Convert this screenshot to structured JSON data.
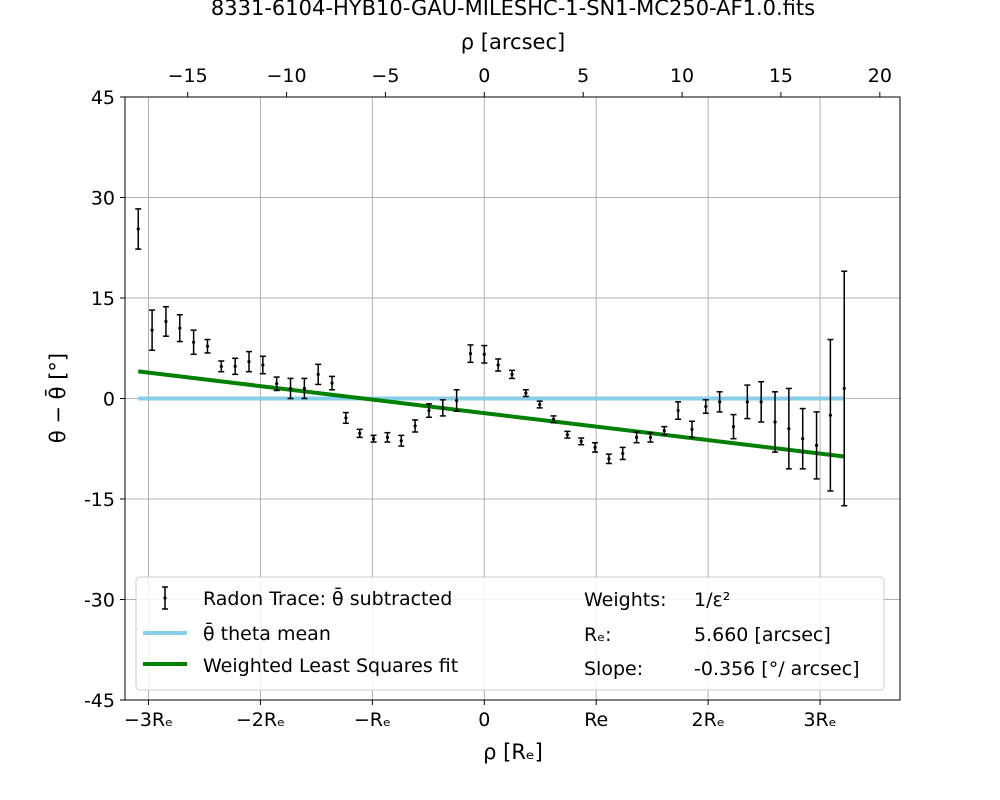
{
  "chart_data": {
    "type": "scatter",
    "title": "8331-6104-HYB10-GAU-MILESHC-1-SN1-MC250-AF1.0.fits",
    "top_axis": {
      "label": "ρ [arcsec]",
      "range": [
        -18.17,
        21.02
      ],
      "ticks": [
        -15,
        -10,
        -5,
        0,
        5,
        10,
        15,
        20
      ],
      "tick_labels": [
        "−15",
        "−10",
        "−5",
        "0",
        "5",
        "10",
        "15",
        "20"
      ]
    },
    "bottom_axis": {
      "label": "ρ [Rₑ]",
      "range": [
        -3.21,
        3.714
      ],
      "ticks": [
        -3,
        -2,
        -1,
        0,
        1,
        2,
        3
      ],
      "tick_labels": [
        "−3Rₑ",
        "−2Rₑ",
        "−Rₑ",
        "0",
        "Re",
        "2Rₑ",
        "3Rₑ"
      ]
    },
    "y_axis": {
      "label": "θ − θ̄ [°]",
      "range": [
        -45,
        45
      ],
      "ticks": [
        -45,
        -30,
        -15,
        0,
        15,
        30,
        45
      ],
      "tick_labels": [
        "-45",
        "-30",
        "-15",
        "0",
        "15",
        "30",
        "45"
      ]
    },
    "grid": true,
    "legend_position": "lower-center",
    "series": [
      {
        "name": "Radon Trace: θ̄ subtracted",
        "kind": "errorbar",
        "color": "#000000",
        "points": [
          {
            "x": -17.5,
            "y": 25.3,
            "err": 3.0
          },
          {
            "x": -16.8,
            "y": 10.2,
            "err": 3.0
          },
          {
            "x": -16.1,
            "y": 11.5,
            "err": 2.2
          },
          {
            "x": -15.4,
            "y": 10.5,
            "err": 2.0
          },
          {
            "x": -14.7,
            "y": 8.4,
            "err": 1.8
          },
          {
            "x": -14.0,
            "y": 7.8,
            "err": 1.0
          },
          {
            "x": -13.3,
            "y": 4.8,
            "err": 0.8
          },
          {
            "x": -12.6,
            "y": 4.8,
            "err": 1.2
          },
          {
            "x": -11.9,
            "y": 5.5,
            "err": 1.5
          },
          {
            "x": -11.2,
            "y": 5.0,
            "err": 1.3
          },
          {
            "x": -10.5,
            "y": 2.2,
            "err": 1.0
          },
          {
            "x": -9.8,
            "y": 1.5,
            "err": 1.5
          },
          {
            "x": -9.1,
            "y": 1.5,
            "err": 1.5
          },
          {
            "x": -8.4,
            "y": 3.6,
            "err": 1.5
          },
          {
            "x": -7.7,
            "y": 2.3,
            "err": 1.0
          },
          {
            "x": -7.0,
            "y": -2.9,
            "err": 0.8
          },
          {
            "x": -6.3,
            "y": -5.2,
            "err": 0.6
          },
          {
            "x": -5.6,
            "y": -6.0,
            "err": 0.5
          },
          {
            "x": -4.9,
            "y": -5.8,
            "err": 0.7
          },
          {
            "x": -4.2,
            "y": -6.3,
            "err": 0.8
          },
          {
            "x": -3.5,
            "y": -4.1,
            "err": 0.9
          },
          {
            "x": -2.8,
            "y": -1.8,
            "err": 1.0
          },
          {
            "x": -2.1,
            "y": -1.4,
            "err": 1.2
          },
          {
            "x": -1.4,
            "y": -0.3,
            "err": 1.6
          },
          {
            "x": -0.7,
            "y": 6.7,
            "err": 1.3
          },
          {
            "x": 0.0,
            "y": 6.6,
            "err": 1.3
          },
          {
            "x": 0.7,
            "y": 5.0,
            "err": 0.9
          },
          {
            "x": 1.4,
            "y": 3.6,
            "err": 0.6
          },
          {
            "x": 2.1,
            "y": 0.8,
            "err": 0.5
          },
          {
            "x": 2.8,
            "y": -0.9,
            "err": 0.5
          },
          {
            "x": 3.5,
            "y": -3.1,
            "err": 0.5
          },
          {
            "x": 4.2,
            "y": -5.4,
            "err": 0.5
          },
          {
            "x": 4.9,
            "y": -6.4,
            "err": 0.5
          },
          {
            "x": 5.6,
            "y": -7.3,
            "err": 0.7
          },
          {
            "x": 6.3,
            "y": -9.0,
            "err": 0.7
          },
          {
            "x": 7.0,
            "y": -8.2,
            "err": 0.9
          },
          {
            "x": 7.7,
            "y": -5.8,
            "err": 0.8
          },
          {
            "x": 8.4,
            "y": -5.8,
            "err": 0.7
          },
          {
            "x": 9.1,
            "y": -4.8,
            "err": 0.6
          },
          {
            "x": 9.8,
            "y": -1.8,
            "err": 1.3
          },
          {
            "x": 10.5,
            "y": -4.6,
            "err": 1.2
          },
          {
            "x": 11.2,
            "y": -1.2,
            "err": 1.0
          },
          {
            "x": 11.9,
            "y": -0.5,
            "err": 1.5
          },
          {
            "x": 12.6,
            "y": -4.2,
            "err": 1.8
          },
          {
            "x": 13.3,
            "y": -0.5,
            "err": 2.5
          },
          {
            "x": 14.0,
            "y": -0.5,
            "err": 3.0
          },
          {
            "x": 14.7,
            "y": -3.5,
            "err": 4.5
          },
          {
            "x": 15.4,
            "y": -4.5,
            "err": 6.0
          },
          {
            "x": 16.1,
            "y": -6.0,
            "err": 4.5
          },
          {
            "x": 16.8,
            "y": -7.0,
            "err": 5.0
          },
          {
            "x": 17.5,
            "y": -2.5,
            "err": 11.3
          },
          {
            "x": 18.2,
            "y": 1.5,
            "err": 17.5
          }
        ]
      },
      {
        "name": "θ̄ theta mean",
        "kind": "line",
        "color": "#87ceeb",
        "x": [
          -17.5,
          18.2
        ],
        "y": [
          0,
          0
        ]
      },
      {
        "name": "Weighted Least Squares fit",
        "kind": "line",
        "color": "#008000",
        "x": [
          -17.5,
          18.2
        ],
        "y": [
          4.05,
          -8.66
        ]
      }
    ],
    "annotations": [
      {
        "key": "Weights:",
        "value": "1/ε²"
      },
      {
        "key": "Rₑ:",
        "value": "5.660 [arcsec]"
      },
      {
        "key": "Slope:",
        "value": "-0.356 [°/ arcsec]"
      }
    ]
  }
}
